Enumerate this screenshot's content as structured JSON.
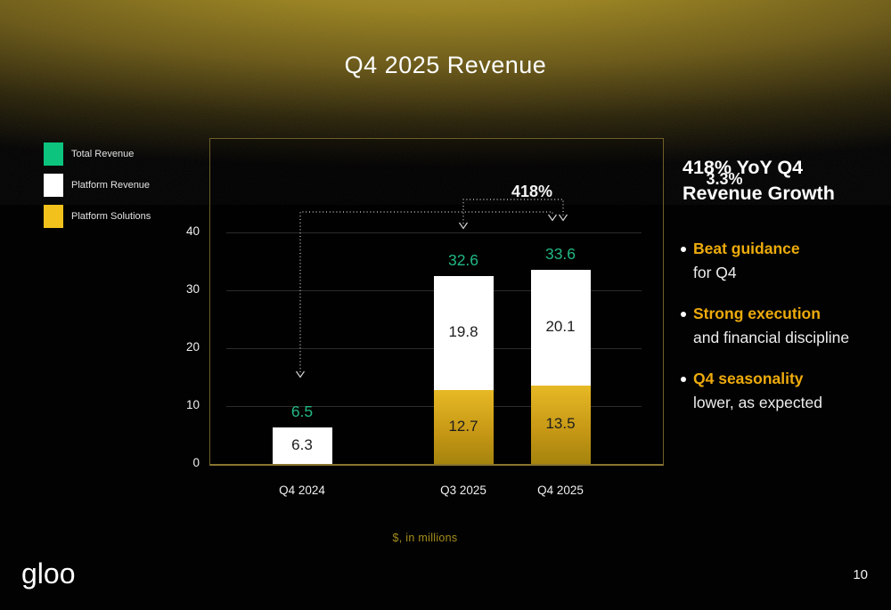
{
  "slide": {
    "title": "Q4 2025 Revenue",
    "logo": "gloo",
    "page_number": "10"
  },
  "legend": {
    "items": [
      {
        "label": "Total Revenue",
        "color": "#0cc47e"
      },
      {
        "label": "Platform Revenue",
        "color": "#ffffff"
      },
      {
        "label": "Platform Solutions",
        "color": "#f2c11c"
      }
    ]
  },
  "chart_data": {
    "type": "bar",
    "stacked": true,
    "categories": [
      "Q4 2024",
      "Q3 2025",
      "Q4 2025"
    ],
    "series": [
      {
        "name": "Platform Solutions",
        "color": "#d8a815",
        "gradient": [
          "#e7b925",
          "#c39514",
          "#a5840e"
        ],
        "values": [
          null,
          12.7,
          13.5
        ]
      },
      {
        "name": "Platform Revenue",
        "color": "#ffffff",
        "values": [
          6.3,
          19.8,
          20.1
        ]
      }
    ],
    "totals": {
      "name": "Total Revenue",
      "color": "#22b883",
      "values": [
        6.5,
        32.6,
        33.6
      ]
    },
    "yticks": [
      0,
      10,
      20,
      30,
      40
    ],
    "ylim": [
      0,
      56
    ],
    "grid": true,
    "legend_position": "left",
    "annotations": [
      {
        "label": "418%",
        "from": "Q4 2024",
        "to": "Q4 2025"
      },
      {
        "label": "3.3%",
        "from": "Q3 2025",
        "to": "Q4 2025"
      }
    ],
    "note": "$, in millions"
  },
  "insights": {
    "heading_lines": [
      "418% YoY Q4",
      "Revenue Growth"
    ],
    "bullets": [
      {
        "highlight": "Beat guidance",
        "rest": "for Q4"
      },
      {
        "highlight": "Strong execution",
        "rest": "and financial discipline"
      },
      {
        "highlight": "Q4 seasonality",
        "rest": "lower, as expected"
      }
    ]
  }
}
